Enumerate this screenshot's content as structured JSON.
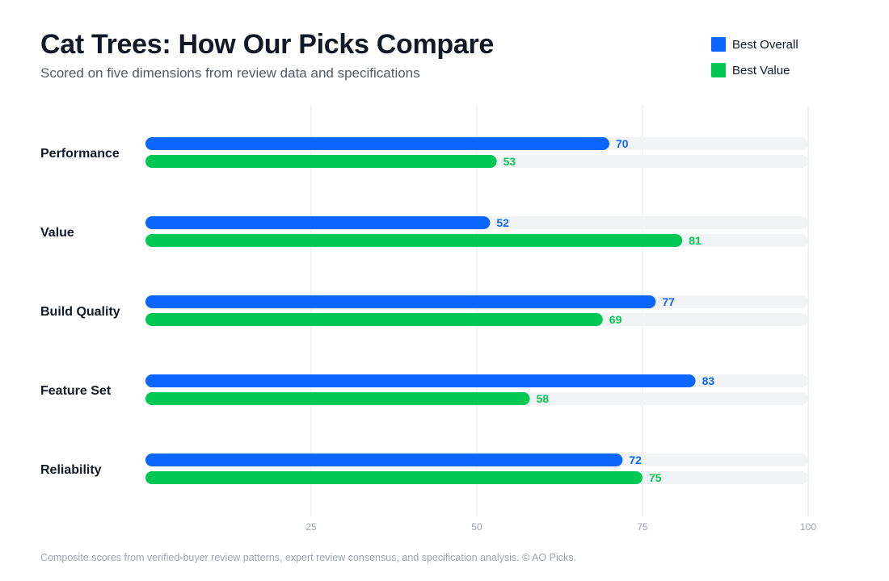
{
  "header": {
    "title": "Cat Trees: How Our Picks Compare",
    "subtitle": "Scored on five dimensions from review data and specifications"
  },
  "footnote": "Composite scores from verified-buyer review patterns, expert review consensus, and specification analysis. © AO Picks.",
  "colors": {
    "best_overall": "#0a66ff",
    "best_value": "#00c853",
    "track": "#f2f3f5",
    "grid": "#e5e7eb"
  },
  "chart_data": {
    "type": "bar",
    "orientation": "horizontal",
    "title": "Cat Trees: How Our Picks Compare",
    "subtitle": "Scored on five dimensions from review data and specifications",
    "categories": [
      "Performance",
      "Value",
      "Build Quality",
      "Feature Set",
      "Reliability"
    ],
    "series": [
      {
        "name": "Best Overall",
        "color": "#0a66ff",
        "values": [
          70,
          52,
          77,
          83,
          72
        ]
      },
      {
        "name": "Best Value",
        "color": "#00c853",
        "values": [
          53,
          81,
          69,
          58,
          75
        ]
      }
    ],
    "xlim": [
      0,
      100
    ],
    "xticks": [
      "25",
      "50",
      "75",
      "100"
    ],
    "grid": true,
    "legend_position": "top-right",
    "data_labels": true
  }
}
